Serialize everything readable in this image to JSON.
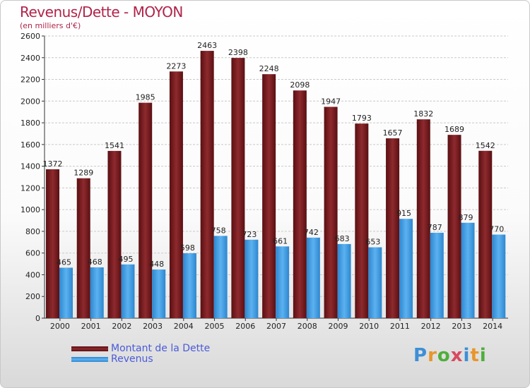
{
  "title": "Revenus/Dette - MOYON",
  "subtitle": "(en milliers d'€)",
  "logo_text": "Proxiti",
  "colors": {
    "dette": "#7a1f23",
    "revenus": "#3f9be0",
    "title": "#b0234a",
    "legend_text": "#4a5bd8"
  },
  "chart_data": {
    "type": "bar",
    "title": "Revenus/Dette - MOYON",
    "ylabel": "(en milliers d'€)",
    "ylim": [
      0,
      2600
    ],
    "ytick_step": 200,
    "grid": true,
    "legend_position": "bottom-left",
    "categories": [
      "2000",
      "2001",
      "2002",
      "2003",
      "2004",
      "2005",
      "2006",
      "2007",
      "2008",
      "2009",
      "2010",
      "2011",
      "2012",
      "2013",
      "2014"
    ],
    "series": [
      {
        "name": "Montant de la Dette",
        "values": [
          1372,
          1289,
          1541,
          1985,
          2273,
          2463,
          2398,
          2248,
          2098,
          1947,
          1793,
          1657,
          1832,
          1689,
          1542
        ]
      },
      {
        "name": "Revenus",
        "values": [
          465,
          468,
          495,
          448,
          598,
          758,
          723,
          661,
          742,
          683,
          653,
          915,
          787,
          879,
          770
        ]
      }
    ]
  }
}
